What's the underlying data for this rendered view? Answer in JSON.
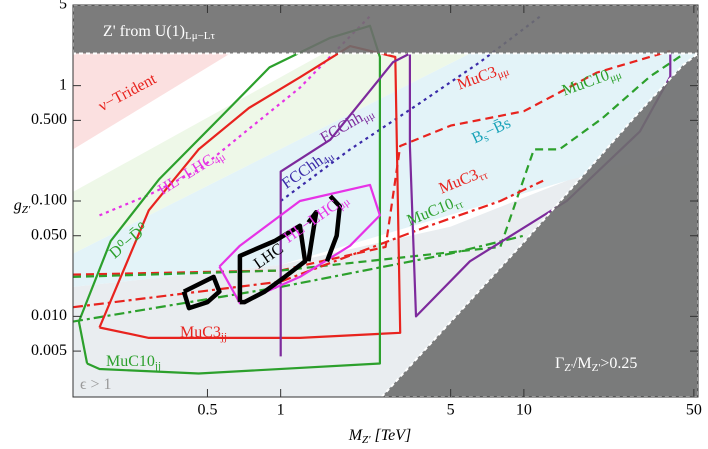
{
  "chart_data": {
    "type": "contour",
    "xlabel": {
      "text": "M",
      "sub": "Z'",
      "unit": " [TeV]"
    },
    "ylabel": {
      "text": "g",
      "sub": "Z'"
    },
    "xscale": "log",
    "yscale": "log",
    "xlim": [
      0.14,
      52
    ],
    "ylim": [
      0.002,
      5
    ],
    "xticks": [
      0.5,
      1,
      5,
      10,
      50
    ],
    "yticks": [
      0.005,
      {
        "value": 0.01,
        "label": "0.010"
      },
      {
        "value": 0.05,
        "label": "0.050"
      },
      {
        "value": 0.1,
        "label": "0.100"
      },
      {
        "value": 0.5,
        "label": "0.500"
      },
      1,
      5
    ],
    "regions": [
      {
        "fill": "#e9edf0",
        "x": [
          0.14,
          0.14,
          1,
          5,
          15,
          40,
          52,
          52
        ],
        "y": [
          0.002,
          0.018,
          0.028,
          0.06,
          0.15,
          0.6,
          1.9,
          0.002
        ]
      },
      {
        "fill": "#e3f3f8",
        "x": [
          0.14,
          0.14,
          6,
          52,
          52,
          15,
          1
        ],
        "y": [
          0.018,
          0.035,
          1.9,
          1.9,
          0.3,
          0.15,
          0.028
        ]
      },
      {
        "fill": "#eef8e8",
        "x": [
          0.14,
          0.14,
          1.5,
          6
        ],
        "y": [
          0.035,
          0.12,
          1.9,
          1.9
        ]
      },
      {
        "fill": "#fbe0e0",
        "x": [
          0.14,
          0.14,
          0.62
        ],
        "y": [
          0.28,
          1.9,
          1.9
        ]
      }
    ],
    "curves": [
      {
        "color": "#e633e6",
        "dash": "dotted",
        "x": [
          0.18,
          0.287,
          0.463,
          0.744,
          1.2,
          1.75,
          2.33
        ],
        "y": [
          0.075,
          0.113,
          0.188,
          0.425,
          0.96,
          2.17,
          4.0
        ]
      },
      {
        "color": "#3a2aa8",
        "dash": "dotted",
        "x": [
          1,
          1.93,
          3.75,
          6.6,
          11.7
        ],
        "y": [
          0.1,
          0.28,
          0.71,
          1.6,
          4.0
        ]
      },
      {
        "color": "#e8231e",
        "dash": "dashed",
        "x": [
          0.14,
          1,
          2.7,
          3.1,
          5,
          10,
          20,
          40
        ],
        "y": [
          0.023,
          0.025,
          0.04,
          0.3,
          0.45,
          0.6,
          1.3,
          2.0
        ]
      },
      {
        "color": "#2ca02c",
        "dash": "dashed",
        "x": [
          0.14,
          1,
          8,
          11,
          14,
          21,
          33,
          44
        ],
        "y": [
          0.022,
          0.025,
          0.04,
          0.28,
          0.28,
          0.52,
          1.2,
          1.8
        ]
      },
      {
        "color": "#e8231e",
        "dash": "dashdot",
        "x": [
          0.14,
          1,
          4,
          8,
          12
        ],
        "y": [
          0.012,
          0.02,
          0.06,
          0.1,
          0.15
        ]
      },
      {
        "color": "#2ca02c",
        "dash": "dashdot",
        "x": [
          0.14,
          1,
          5,
          10
        ],
        "y": [
          0.009,
          0.018,
          0.035,
          0.05
        ]
      },
      {
        "color": "#e8231e",
        "dash": "solid",
        "x": [
          0.18,
          0.216,
          0.287,
          0.46,
          0.74,
          1.2,
          1.93,
          2.96,
          3.1,
          1.2,
          0.287,
          0.18
        ],
        "y": [
          0.008,
          0.02,
          0.083,
          0.28,
          0.64,
          1.18,
          2.2,
          1.77,
          0.0072,
          0.0065,
          0.0065,
          0.008
        ]
      },
      {
        "color": "#2ca02c",
        "dash": "solid",
        "x": [
          0.16,
          0.148,
          0.2,
          0.316,
          0.56,
          0.9,
          1.6,
          2.33,
          2.56,
          2.56,
          0.46,
          0.18,
          0.16
        ],
        "y": [
          0.0039,
          0.009,
          0.045,
          0.154,
          0.52,
          1.44,
          2.6,
          3.3,
          1.77,
          0.0039,
          0.0032,
          0.0035,
          0.0039
        ]
      },
      {
        "color": "#7d2a9c",
        "dash": "solid",
        "x": [
          1,
          1,
          1.6,
          2.9,
          3.4,
          3.4,
          3.6,
          6,
          15,
          30,
          40,
          40
        ],
        "y": [
          0.0045,
          0.18,
          0.34,
          1.6,
          1.9,
          0.3,
          0.01,
          0.03,
          0.1,
          0.4,
          1.2,
          1.9
        ]
      },
      {
        "color": "#e633e6",
        "dash": "solid",
        "x": [
          0.56,
          0.68,
          1.2,
          2.33,
          2.56,
          1.93,
          1.2,
          0.68,
          0.56
        ],
        "y": [
          0.027,
          0.041,
          0.1,
          0.138,
          0.075,
          0.041,
          0.022,
          0.013,
          0.027
        ]
      },
      {
        "color": "#000000",
        "dash": "thick",
        "x": [
          0.4,
          0.53,
          0.56,
          0.5,
          0.42,
          0.4
        ],
        "y": [
          0.0164,
          0.022,
          0.0164,
          0.0133,
          0.0118,
          0.0164
        ]
      },
      {
        "color": "#000000",
        "dash": "thick",
        "x": [
          0.68,
          0.68,
          0.945,
          1.2,
          1.26,
          1.04,
          0.86,
          0.71,
          0.68
        ],
        "y": [
          0.0133,
          0.0334,
          0.045,
          0.061,
          0.03,
          0.022,
          0.0164,
          0.0133,
          0.0133
        ]
      },
      {
        "color": "#000000",
        "dash": "thick",
        "x": [
          1.3,
          1.4,
          1.3
        ],
        "y": [
          0.065,
          0.08,
          0.03
        ]
      },
      {
        "color": "#000000",
        "dash": "thick",
        "x": [
          1.6,
          1.75,
          1.7,
          1.55
        ],
        "y": [
          0.11,
          0.09,
          0.05,
          0.03
        ]
      }
    ],
    "excluded": [
      {
        "fill": "#6e6e6e",
        "x": [
          0.14,
          0.14,
          52,
          52
        ],
        "y": [
          1.9,
          5,
          5,
          1.9
        ]
      },
      {
        "fill": "#6e6e6e",
        "x": [
          2.6,
          10,
          30,
          45,
          52,
          52
        ],
        "y": [
          0.002,
          0.044,
          0.6,
          1.5,
          1.9,
          0.002
        ]
      }
    ],
    "labels": [
      {
        "text": "Z' from U(1)",
        "sub": "Lμ−Lτ"
      },
      {
        "text": "ν−Trident"
      },
      {
        "text": "HL−LHC",
        "sub": "4μ"
      },
      {
        "text": "FCChh",
        "sub": "μμ"
      },
      {
        "text": "FCChh",
        "sub": "4μ"
      },
      {
        "text": "MuC3",
        "sub": "μμ"
      },
      {
        "text": "MuC10",
        "sub": "μμ"
      },
      {
        "text": "B",
        "sub": "s",
        "tail": "−B̄s"
      },
      {
        "text": "MuC3",
        "sub": "ττ"
      },
      {
        "text": "MuC10",
        "sub": "ττ"
      },
      {
        "text": "D⁰−D̄⁰"
      },
      {
        "text": "LHC"
      },
      {
        "text": "HL−LHC",
        "sub": "μμ"
      },
      {
        "text": "MuC3",
        "sub": "jj"
      },
      {
        "text": "MuC10",
        "sub": "jj"
      },
      {
        "text": "ϵ > 1"
      },
      {
        "text": "Γ",
        "sub": "Z'",
        "tail": "/M",
        "sub2": "Z'",
        "tail2": ">0.25"
      }
    ]
  }
}
